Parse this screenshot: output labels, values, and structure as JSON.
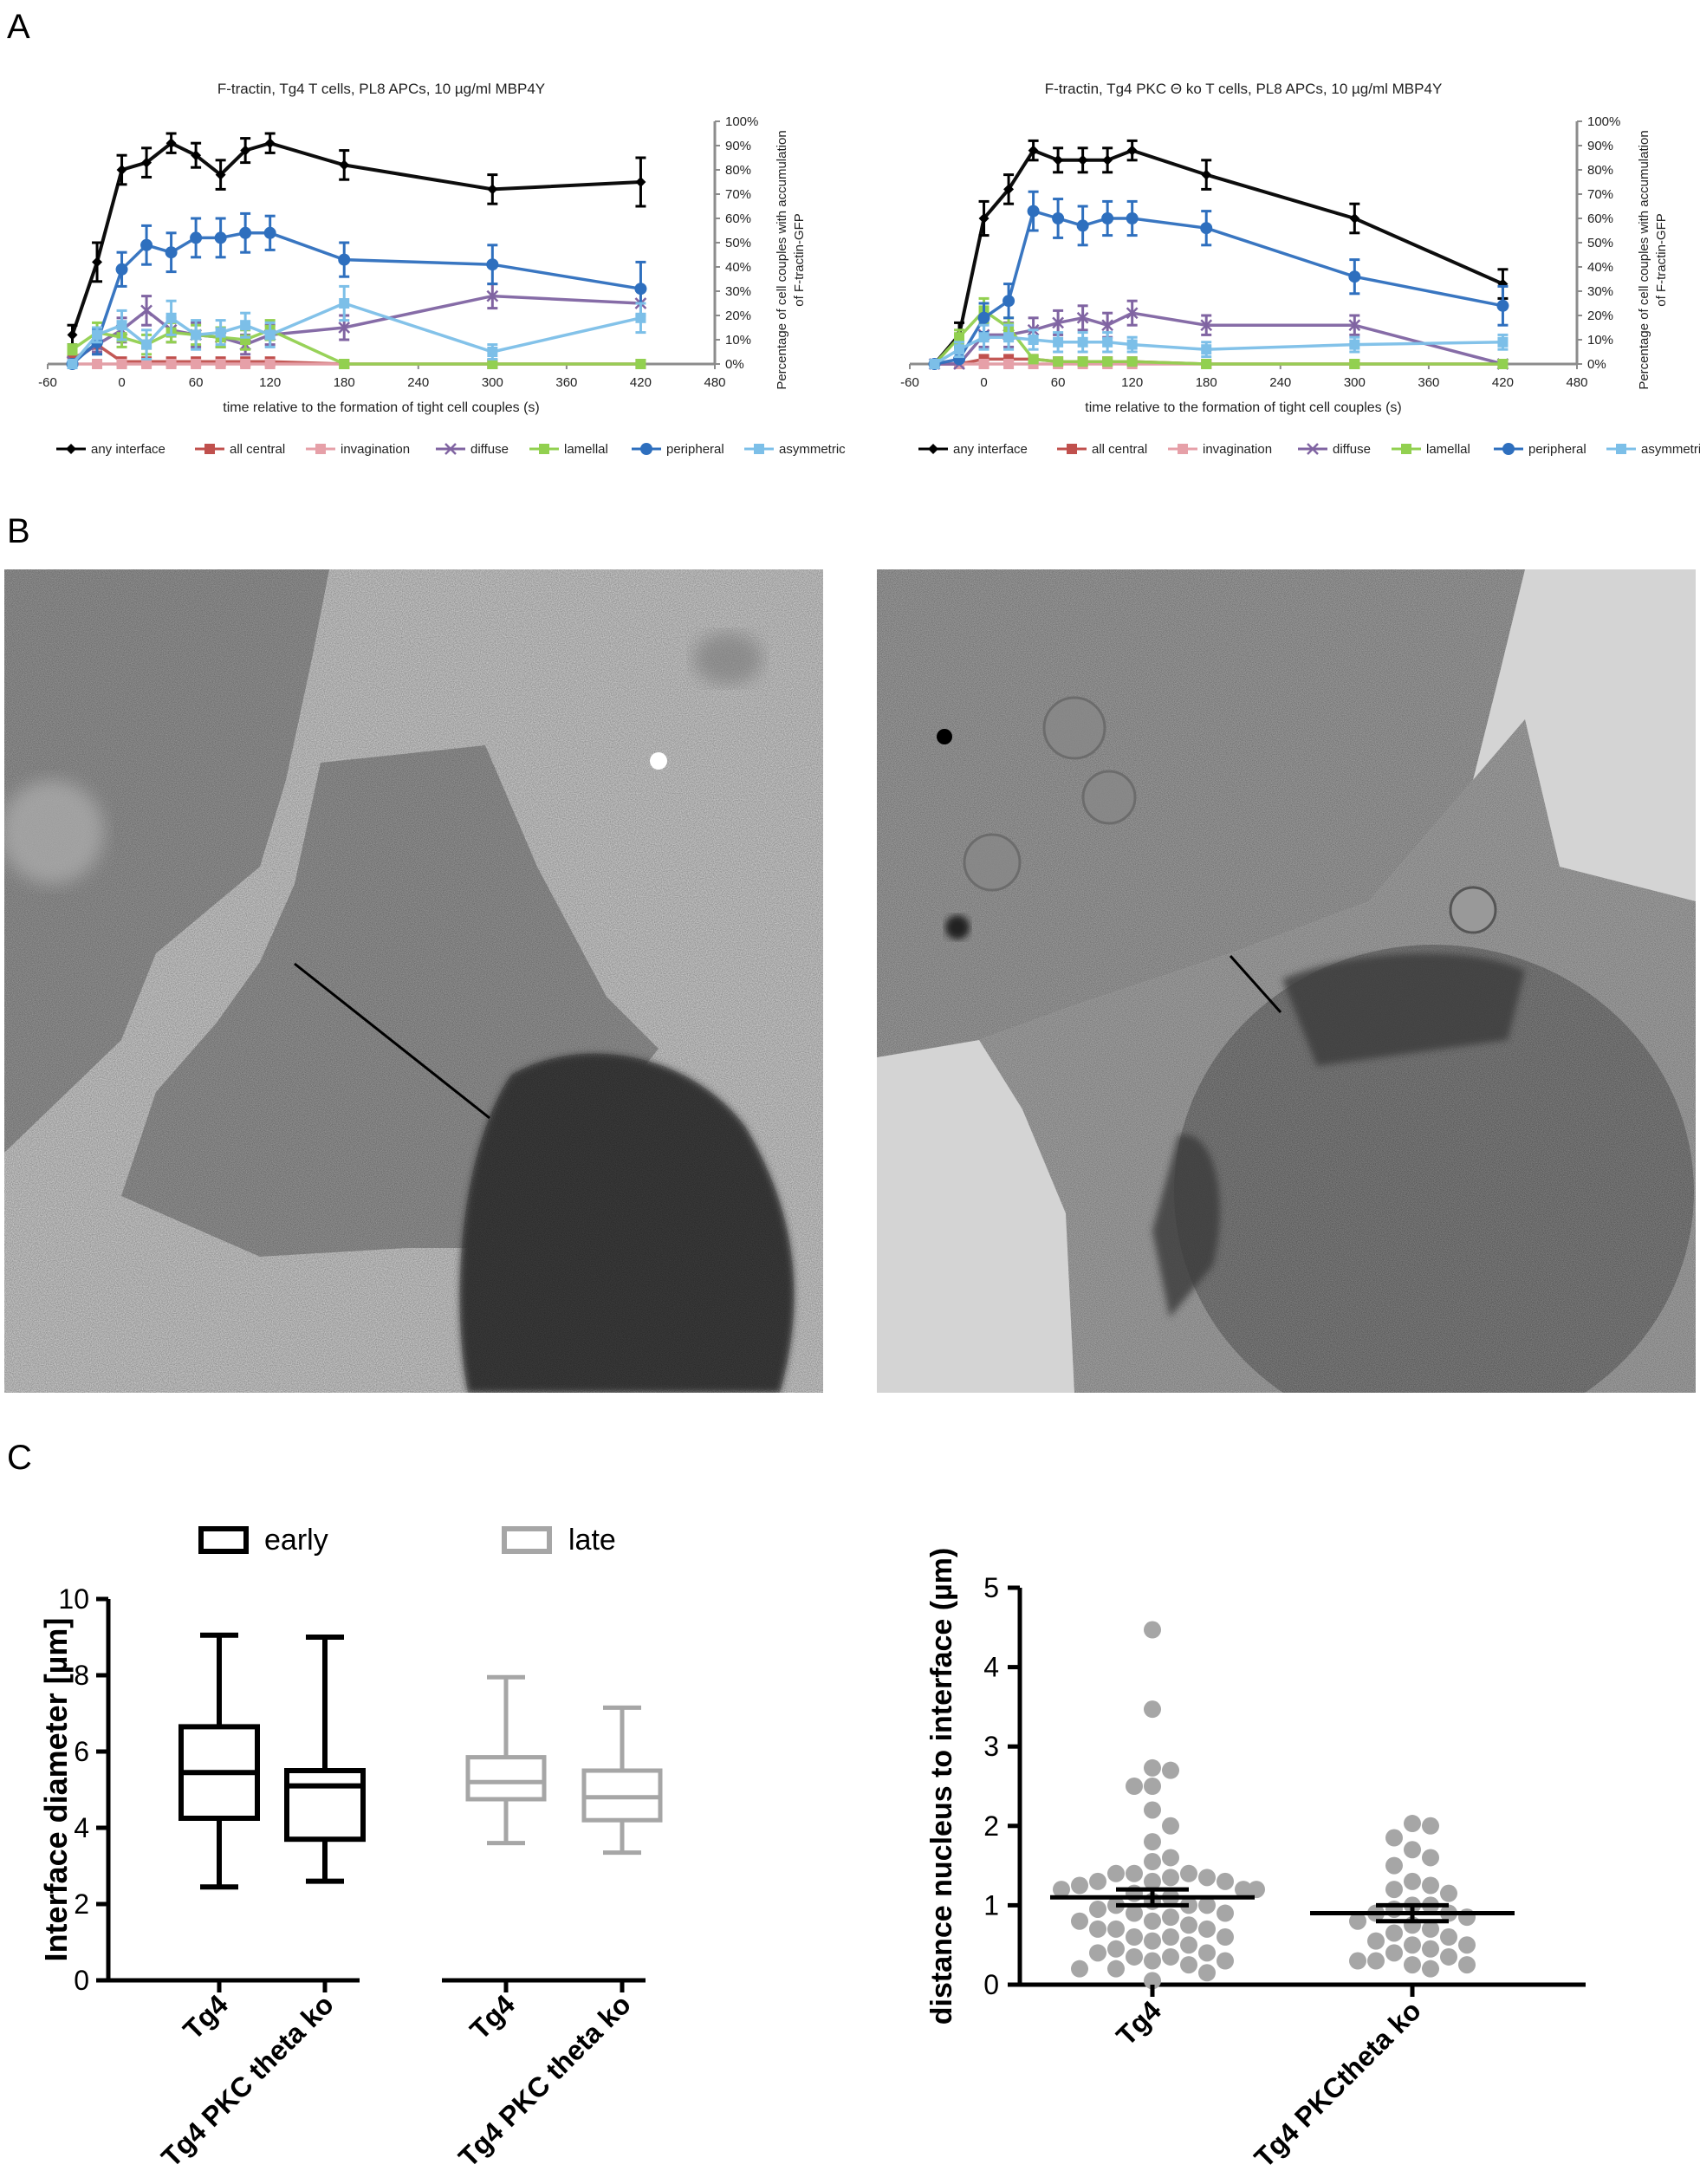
{
  "panel_labels": {
    "a": "A",
    "b": "B",
    "c": "C"
  },
  "colors": {
    "any interface": "#000000",
    "all central": "#c0504d",
    "invagination": "#e6a0a8",
    "diffuse": "#8064a2",
    "lamellal": "#92d050",
    "peripheral": "#2e6fbe",
    "asymmetric": "#7cbfe8",
    "axis_gray": "#8c8c8c",
    "late_gray": "#a6a6a6",
    "dot_gray": "#a6a6a6"
  },
  "legend_labels": [
    "any interface",
    "all central",
    "invagination",
    "diffuse",
    "lamellal",
    "peripheral",
    "asymmetric"
  ],
  "chart_data": [
    {
      "type": "line",
      "title": "F-tractin, Tg4 T cells, PL8 APCs, 10 µg/ml MBP4Y",
      "xlabel": "time relative to the formation of tight cell couples (s)",
      "ylabel": "Percentage of cell couples with accumulation of F-tractin-GFP",
      "xlim": [
        -60,
        480
      ],
      "xticks": [
        "-60",
        "0",
        "60",
        "120",
        "180",
        "240",
        "300",
        "360",
        "420",
        "480"
      ],
      "ylim": [
        0,
        100
      ],
      "yticks": [
        "0%",
        "10%",
        "20%",
        "30%",
        "40%",
        "50%",
        "60%",
        "70%",
        "80%",
        "90%",
        "100%"
      ],
      "legend": "bottom",
      "series": [
        {
          "name": "any interface",
          "x": [
            -40,
            -20,
            0,
            20,
            40,
            60,
            80,
            100,
            120,
            180,
            300,
            420
          ],
          "y": [
            12,
            42,
            80,
            83,
            91,
            86,
            78,
            88,
            91,
            82,
            72,
            75
          ],
          "err": [
            4,
            8,
            6,
            6,
            4,
            5,
            6,
            5,
            4,
            6,
            6,
            10
          ]
        },
        {
          "name": "all central",
          "x": [
            -40,
            -20,
            0,
            20,
            40,
            60,
            80,
            100,
            120,
            180,
            300,
            420
          ],
          "y": [
            2,
            8,
            1,
            1,
            1,
            1,
            1,
            1,
            1,
            0,
            0,
            0
          ],
          "err": [
            0,
            0,
            0,
            0,
            0,
            0,
            0,
            0,
            0,
            0,
            0,
            0
          ]
        },
        {
          "name": "invagination",
          "x": [
            -40,
            -20,
            0,
            20,
            40,
            60,
            80,
            100,
            120,
            180,
            300,
            420
          ],
          "y": [
            0,
            0,
            0,
            0,
            0,
            0,
            0,
            0,
            0,
            0,
            0,
            0
          ],
          "err": [
            0,
            0,
            0,
            0,
            0,
            0,
            0,
            0,
            0,
            0,
            0,
            0
          ]
        },
        {
          "name": "diffuse",
          "x": [
            -40,
            -20,
            0,
            20,
            40,
            60,
            80,
            100,
            120,
            180,
            300,
            420
          ],
          "y": [
            1,
            8,
            14,
            22,
            14,
            12,
            11,
            8,
            12,
            15,
            28,
            25
          ],
          "err": [
            0,
            3,
            5,
            6,
            5,
            5,
            4,
            4,
            4,
            5,
            5,
            0
          ]
        },
        {
          "name": "lamellal",
          "x": [
            -40,
            -20,
            0,
            20,
            40,
            60,
            80,
            100,
            120,
            180,
            300,
            420
          ],
          "y": [
            6,
            13,
            11,
            8,
            13,
            12,
            11,
            10,
            14,
            0,
            0,
            0
          ],
          "err": [
            2,
            4,
            4,
            4,
            4,
            4,
            4,
            4,
            4,
            0,
            0,
            0
          ]
        },
        {
          "name": "peripheral",
          "x": [
            -40,
            -20,
            0,
            20,
            40,
            60,
            80,
            100,
            120,
            180,
            300,
            420
          ],
          "y": [
            0,
            9,
            39,
            49,
            46,
            52,
            52,
            54,
            54,
            43,
            41,
            31
          ],
          "err": [
            0,
            5,
            7,
            8,
            8,
            8,
            8,
            8,
            7,
            7,
            8,
            11
          ]
        },
        {
          "name": "asymmetric",
          "x": [
            -40,
            -20,
            0,
            20,
            40,
            60,
            80,
            100,
            120,
            180,
            300,
            420
          ],
          "y": [
            0,
            12,
            16,
            8,
            19,
            12,
            13,
            16,
            12,
            25,
            5,
            19
          ],
          "err": [
            0,
            3,
            6,
            6,
            7,
            6,
            5,
            5,
            5,
            7,
            3,
            6
          ]
        }
      ]
    },
    {
      "type": "line",
      "title": "F-tractin, Tg4 PKC Θ ko T cells, PL8 APCs, 10 µg/ml MBP4Y",
      "xlabel": "time relative to the formation of tight cell couples (s)",
      "ylabel": "Percentage of cell couples with accumulation of F-tractin-GFP",
      "xlim": [
        -60,
        480
      ],
      "xticks": [
        "-60",
        "0",
        "60",
        "120",
        "180",
        "240",
        "300",
        "360",
        "420",
        "480"
      ],
      "ylim": [
        0,
        100
      ],
      "yticks": [
        "0%",
        "10%",
        "20%",
        "30%",
        "40%",
        "50%",
        "60%",
        "70%",
        "80%",
        "90%",
        "100%"
      ],
      "legend": "bottom",
      "series": [
        {
          "name": "any interface",
          "x": [
            -40,
            -20,
            0,
            20,
            40,
            60,
            80,
            100,
            120,
            180,
            300,
            420
          ],
          "y": [
            0,
            12,
            60,
            72,
            88,
            84,
            84,
            84,
            88,
            78,
            60,
            33
          ],
          "err": [
            0,
            5,
            7,
            6,
            4,
            5,
            5,
            5,
            4,
            6,
            6,
            6
          ]
        },
        {
          "name": "all central",
          "x": [
            -40,
            -20,
            0,
            20,
            40,
            60,
            80,
            100,
            120,
            180,
            300,
            420
          ],
          "y": [
            0,
            0,
            2,
            2,
            2,
            1,
            1,
            1,
            1,
            0,
            0,
            0
          ],
          "err": [
            0,
            0,
            0,
            0,
            0,
            0,
            0,
            0,
            0,
            0,
            0,
            0
          ]
        },
        {
          "name": "invagination",
          "x": [
            -40,
            -20,
            0,
            20,
            40,
            60,
            80,
            100,
            120,
            180,
            300,
            420
          ],
          "y": [
            0,
            0,
            0,
            0,
            0,
            0,
            0,
            0,
            0,
            0,
            0,
            0
          ],
          "err": [
            0,
            0,
            0,
            0,
            0,
            0,
            0,
            0,
            0,
            0,
            0,
            0
          ]
        },
        {
          "name": "diffuse",
          "x": [
            -40,
            -20,
            0,
            20,
            40,
            60,
            80,
            100,
            120,
            180,
            300,
            420
          ],
          "y": [
            0,
            0,
            12,
            12,
            14,
            17,
            19,
            16,
            21,
            16,
            16,
            0
          ],
          "err": [
            0,
            0,
            5,
            5,
            5,
            5,
            5,
            5,
            5,
            4,
            4,
            0
          ]
        },
        {
          "name": "lamellal",
          "x": [
            -40,
            -20,
            0,
            20,
            40,
            60,
            80,
            100,
            120,
            180,
            300,
            420
          ],
          "y": [
            0,
            11,
            22,
            15,
            2,
            1,
            1,
            1,
            1,
            0,
            0,
            0
          ],
          "err": [
            0,
            3,
            5,
            4,
            1,
            0,
            0,
            0,
            0,
            0,
            0,
            0
          ]
        },
        {
          "name": "peripheral",
          "x": [
            -40,
            -20,
            0,
            20,
            40,
            60,
            80,
            100,
            120,
            180,
            300,
            420
          ],
          "y": [
            0,
            2,
            19,
            26,
            63,
            60,
            57,
            60,
            60,
            56,
            36,
            24
          ],
          "err": [
            0,
            0,
            6,
            7,
            8,
            8,
            8,
            7,
            7,
            7,
            7,
            8
          ]
        },
        {
          "name": "asymmetric",
          "x": [
            -40,
            -20,
            0,
            20,
            40,
            60,
            80,
            100,
            120,
            180,
            300,
            420
          ],
          "y": [
            0,
            6,
            11,
            11,
            10,
            9,
            9,
            9,
            8,
            6,
            8,
            9
          ],
          "err": [
            0,
            3,
            5,
            5,
            4,
            4,
            4,
            4,
            3,
            3,
            3,
            3
          ]
        }
      ]
    },
    {
      "type": "box",
      "ylabel": "Interface diameter [µm]",
      "ylim": [
        0,
        10
      ],
      "yticks": [
        "0",
        "2",
        "4",
        "6",
        "8",
        "10"
      ],
      "legend_entries": [
        "early",
        "late"
      ],
      "groups": [
        {
          "label": "Tg4",
          "series": "early",
          "min": 2.45,
          "q1": 4.25,
          "median": 5.45,
          "q3": 6.65,
          "max": 9.05
        },
        {
          "label": "Tg4 PKC theta ko",
          "series": "early",
          "min": 2.6,
          "q1": 3.7,
          "median": 5.1,
          "q3": 5.5,
          "max": 9.0
        },
        {
          "label": "Tg4",
          "series": "late",
          "min": 3.6,
          "q1": 4.75,
          "median": 5.2,
          "q3": 5.85,
          "max": 7.95
        },
        {
          "label": "Tg4 PKC theta ko",
          "series": "late",
          "min": 3.35,
          "q1": 4.2,
          "median": 4.8,
          "q3": 5.5,
          "max": 7.15
        }
      ]
    },
    {
      "type": "scatter",
      "ylabel": "distance nucleus to interface (µm)",
      "ylim": [
        0,
        5
      ],
      "yticks": [
        "0",
        "1",
        "2",
        "3",
        "4",
        "5"
      ],
      "groups": [
        {
          "label": "Tg4",
          "mean": 1.1,
          "sem": 0.1,
          "values": [
            4.47,
            3.47,
            2.73,
            2.7,
            2.5,
            2.5,
            2.2,
            2.0,
            1.8,
            1.6,
            1.55,
            1.4,
            1.4,
            1.4,
            1.35,
            1.35,
            1.3,
            1.3,
            1.3,
            1.25,
            1.2,
            1.2,
            1.2,
            1.15,
            1.1,
            1.05,
            1.0,
            1.0,
            1.0,
            0.95,
            0.9,
            0.9,
            0.85,
            0.8,
            0.8,
            0.75,
            0.7,
            0.7,
            0.7,
            0.6,
            0.6,
            0.6,
            0.55,
            0.5,
            0.45,
            0.4,
            0.4,
            0.35,
            0.35,
            0.3,
            0.3,
            0.25,
            0.2,
            0.2,
            0.15,
            0.05
          ]
        },
        {
          "label": "Tg4 PKCtheta ko",
          "mean": 0.9,
          "sem": 0.1,
          "values": [
            2.03,
            2.0,
            1.85,
            1.7,
            1.6,
            1.5,
            1.3,
            1.25,
            1.2,
            1.15,
            1.0,
            1.0,
            0.95,
            0.9,
            0.9,
            0.85,
            0.8,
            0.75,
            0.7,
            0.65,
            0.6,
            0.55,
            0.5,
            0.5,
            0.45,
            0.4,
            0.35,
            0.3,
            0.3,
            0.25,
            0.25,
            0.2
          ]
        }
      ]
    }
  ]
}
